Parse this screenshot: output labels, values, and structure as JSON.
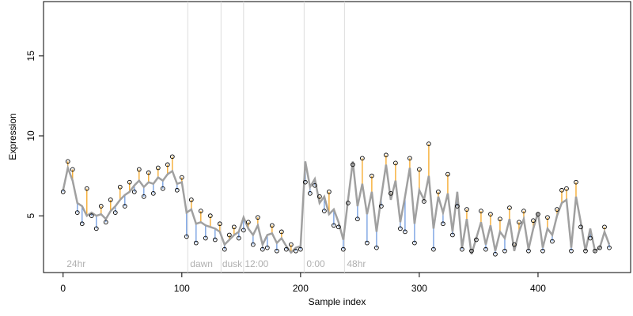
{
  "chart_data": {
    "type": "residual-line",
    "x_label": "Sample index",
    "y_label": "Expression",
    "xlim": [
      -16.5,
      478
    ],
    "ylim": [
      1.45,
      18.4
    ],
    "xticks": [
      0,
      100,
      200,
      300,
      400
    ],
    "yticks": [
      5,
      10,
      15
    ],
    "x": [
      0,
      4,
      8,
      12,
      16,
      20,
      24,
      28,
      32,
      36,
      40,
      44,
      48,
      52,
      56,
      60,
      64,
      68,
      72,
      76,
      80,
      84,
      88,
      92,
      96,
      100,
      104,
      108,
      112,
      116,
      120,
      124,
      128,
      132,
      136,
      140,
      144,
      148,
      152,
      156,
      160,
      164,
      168,
      172,
      176,
      180,
      184,
      188,
      192,
      196,
      200,
      204,
      208,
      212,
      216,
      220,
      224,
      228,
      232,
      236,
      240,
      244,
      248,
      252,
      256,
      260,
      264,
      268,
      272,
      276,
      280,
      284,
      288,
      292,
      296,
      300,
      304,
      308,
      312,
      316,
      320,
      324,
      328,
      332,
      336,
      340,
      344,
      348,
      352,
      356,
      360,
      364,
      368,
      372,
      376,
      380,
      384,
      388,
      392,
      396,
      400,
      404,
      408,
      412,
      416,
      420,
      424,
      428,
      432,
      436,
      440,
      444,
      448,
      452,
      456,
      460
    ],
    "series": [
      {
        "color": "#a0a0a0",
        "values": [
          6.6,
          8.0,
          7.2,
          5.8,
          5.6,
          5.0,
          5.2,
          5.0,
          5.1,
          4.8,
          5.3,
          5.6,
          6.0,
          6.3,
          6.5,
          6.9,
          7.2,
          6.8,
          7.1,
          7.0,
          7.4,
          7.2,
          7.6,
          7.8,
          7.0,
          7.1,
          5.2,
          5.4,
          4.5,
          4.6,
          4.4,
          4.3,
          4.2,
          4.0,
          3.2,
          3.5,
          3.8,
          4.0,
          4.9,
          4.2,
          3.8,
          4.4,
          3.2,
          3.8,
          3.9,
          3.3,
          3.6,
          3.1,
          2.7,
          3.0,
          3.1,
          8.4,
          6.8,
          7.3,
          5.8,
          6.2,
          5.1,
          5.4,
          4.6,
          3.5,
          6.0,
          8.4,
          5.6,
          7.0,
          5.1,
          6.5,
          4.0,
          6.2,
          8.2,
          6.0,
          7.2,
          4.6,
          6.2,
          8.0,
          4.5,
          6.6,
          6.0,
          7.5,
          4.2,
          6.2,
          5.2,
          6.4,
          4.0,
          6.5,
          3.0,
          4.8,
          2.6,
          3.6,
          4.6,
          3.2,
          4.4,
          2.8,
          4.0,
          3.6,
          4.8,
          2.8,
          4.0,
          4.8,
          2.9,
          4.2,
          5.2,
          3.0,
          4.2,
          3.8,
          5.0,
          5.8,
          6.0,
          3.0,
          6.2,
          4.6,
          2.8,
          4.2,
          2.8,
          3.0,
          4.0,
          3.2
        ]
      },
      {
        "color": "#000000",
        "values": [
          6.5,
          8.4,
          7.9,
          5.2,
          4.5,
          6.7,
          5.0,
          4.2,
          5.6,
          4.6,
          6.0,
          5.2,
          6.8,
          5.6,
          7.1,
          6.5,
          7.9,
          6.2,
          7.7,
          6.4,
          8.0,
          6.7,
          8.2,
          8.7,
          6.6,
          7.4,
          3.7,
          6.0,
          3.3,
          5.3,
          3.6,
          5.0,
          3.5,
          4.5,
          2.9,
          3.8,
          4.3,
          3.6,
          4.1,
          4.6,
          3.2,
          4.9,
          2.9,
          3.0,
          4.4,
          2.8,
          4.0,
          2.9,
          3.2,
          2.8,
          2.9,
          7.1,
          6.4,
          6.9,
          6.2,
          5.3,
          6.5,
          4.4,
          4.3,
          2.9,
          5.8,
          8.2,
          4.8,
          8.6,
          3.3,
          7.5,
          3.0,
          5.6,
          8.8,
          6.4,
          8.3,
          4.2,
          4.0,
          8.6,
          3.3,
          7.9,
          5.9,
          9.5,
          2.9,
          6.5,
          4.5,
          7.6,
          3.8,
          5.6,
          2.9,
          5.4,
          2.8,
          3.5,
          5.3,
          2.9,
          5.1,
          2.6,
          4.8,
          2.8,
          5.5,
          3.2,
          4.6,
          5.3,
          2.8,
          4.7,
          5.1,
          2.8,
          4.9,
          3.4,
          5.4,
          6.6,
          6.7,
          2.8,
          7.1,
          4.3,
          2.8,
          3.6,
          2.8,
          3.0,
          4.3,
          3.0
        ]
      }
    ],
    "residual_colors": {
      "above": "#f5a623",
      "below": "#6f9be0"
    },
    "vlines": [
      105,
      133,
      152,
      203,
      237
    ],
    "annotations": [
      {
        "text": "24hr",
        "x": 3
      },
      {
        "text": "dawn",
        "x": 107
      },
      {
        "text": "dusk",
        "x": 134
      },
      {
        "text": "12:00",
        "x": 153
      },
      {
        "text": "0:00",
        "x": 205
      },
      {
        "text": "48hr",
        "x": 239
      }
    ]
  }
}
